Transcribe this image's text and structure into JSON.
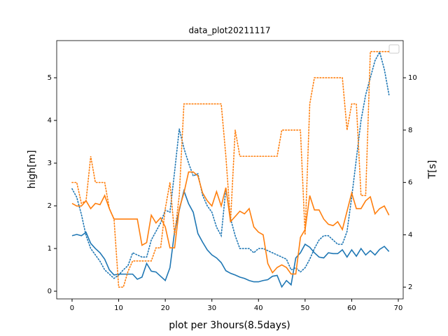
{
  "chart_data": {
    "type": "line",
    "title": "data_plot20211117",
    "x_label": "plot per 3hours(8.5days)",
    "y_label": "high[m]",
    "y2_label": "T[s]",
    "x": [
      0,
      1,
      2,
      3,
      4,
      5,
      6,
      7,
      8,
      9,
      10,
      11,
      12,
      13,
      14,
      15,
      16,
      17,
      18,
      19,
      20,
      21,
      22,
      23,
      24,
      25,
      26,
      27,
      28,
      29,
      30,
      31,
      32,
      33,
      34,
      35,
      36,
      37,
      38,
      39,
      40,
      41,
      42,
      43,
      44,
      45,
      46,
      47,
      48,
      49,
      50,
      51,
      52,
      53,
      54,
      55,
      56,
      57,
      58,
      59,
      60,
      61,
      62,
      63,
      64,
      65,
      66,
      67,
      68
    ],
    "xlim": [
      -3.3,
      71.05
    ],
    "xticks": [
      0,
      10,
      20,
      30,
      40,
      50,
      60,
      70
    ],
    "ylim": [
      -0.18,
      5.87
    ],
    "yticks": [
      0,
      1,
      2,
      3,
      4,
      5
    ],
    "y2lim": [
      1.55,
      11.42
    ],
    "y2ticks": [
      2,
      4,
      6,
      8,
      10
    ],
    "series": [
      {
        "color": "#1f77b4",
        "dash": "solid",
        "values": [
          1.3,
          1.33,
          1.3,
          1.38,
          1.12,
          1.0,
          0.9,
          0.75,
          0.5,
          0.38,
          0.4,
          0.4,
          0.4,
          0.4,
          0.28,
          0.33,
          0.65,
          0.47,
          0.45,
          0.35,
          0.25,
          0.55,
          1.4,
          1.9,
          2.35,
          2.05,
          1.85,
          1.35,
          1.15,
          0.97,
          0.85,
          0.78,
          0.67,
          0.48,
          0.42,
          0.38,
          0.33,
          0.3,
          0.25,
          0.22,
          0.22,
          0.25,
          0.27,
          0.35,
          0.37,
          0.1,
          0.25,
          0.15,
          0.78,
          0.9,
          1.1,
          1.03,
          0.9,
          0.8,
          0.78,
          0.9,
          0.88,
          0.88,
          0.97,
          0.8,
          0.97,
          0.82,
          1.0,
          0.85,
          0.95,
          0.85,
          0.98,
          1.05,
          0.93
        ]
      },
      {
        "color": "#1f77b4",
        "dash": "dotted",
        "values": [
          2.4,
          2.2,
          1.8,
          1.3,
          1.0,
          0.85,
          0.7,
          0.5,
          0.4,
          0.3,
          0.38,
          0.5,
          0.6,
          0.9,
          0.85,
          0.8,
          0.8,
          1.2,
          1.4,
          1.6,
          1.9,
          1.85,
          2.8,
          3.8,
          3.35,
          3.0,
          2.7,
          2.75,
          2.25,
          2.0,
          1.85,
          1.5,
          1.3,
          2.4,
          1.7,
          1.3,
          1.0,
          1.0,
          1.0,
          0.9,
          1.0,
          1.0,
          0.95,
          0.9,
          0.85,
          0.8,
          0.75,
          0.5,
          0.55,
          0.45,
          0.55,
          0.75,
          1.0,
          1.2,
          1.3,
          1.3,
          1.2,
          1.1,
          1.1,
          1.4,
          2.2,
          3.1,
          4.0,
          4.6,
          5.0,
          5.4,
          5.6,
          5.2,
          4.6
        ]
      },
      {
        "color": "#ff7f0e",
        "dash": "solid",
        "axis": "y2",
        "values": [
          5.2,
          5.1,
          5.1,
          5.3,
          5.0,
          5.2,
          5.15,
          5.5,
          5.0,
          4.6,
          4.6,
          4.6,
          4.6,
          4.6,
          4.6,
          3.6,
          3.7,
          4.75,
          4.45,
          4.65,
          4.3,
          3.5,
          3.5,
          5.0,
          5.6,
          6.4,
          6.4,
          6.25,
          5.6,
          5.3,
          5.1,
          5.65,
          5.1,
          5.8,
          4.5,
          4.7,
          4.9,
          4.8,
          5.0,
          4.3,
          4.1,
          4.0,
          2.9,
          2.55,
          2.75,
          2.85,
          2.75,
          2.5,
          2.5,
          3.9,
          4.2,
          5.5,
          4.95,
          4.95,
          4.6,
          4.4,
          4.35,
          4.5,
          4.2,
          4.9,
          5.6,
          5.0,
          5.0,
          5.3,
          5.45,
          4.8,
          5.0,
          5.1,
          4.75
        ]
      },
      {
        "color": "#ff7f0e",
        "dash": "dotted",
        "axis": "y2",
        "values": [
          6,
          6,
          5.2,
          5.3,
          7,
          6,
          6,
          6,
          5,
          4.6,
          2,
          2,
          2.6,
          3,
          3,
          3,
          3,
          3,
          3.5,
          3.5,
          5,
          6,
          4,
          5.5,
          9,
          9,
          9,
          9,
          9,
          9,
          9,
          9,
          9,
          7,
          4.5,
          8,
          7,
          7,
          7,
          7,
          7,
          7,
          7,
          7,
          7,
          8,
          8,
          8,
          8,
          8,
          4,
          9,
          10,
          10,
          10,
          10,
          10,
          10,
          10,
          8,
          9,
          9,
          5.5,
          5.5,
          11,
          11,
          11,
          11,
          11
        ]
      }
    ]
  }
}
